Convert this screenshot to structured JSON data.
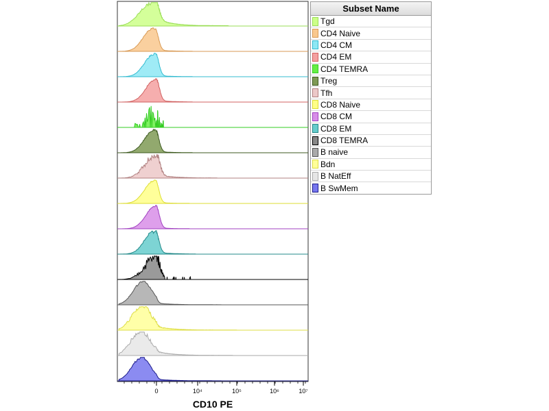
{
  "chart_data": {
    "type": "histogram-overlay",
    "xlabel": "CD10 PE",
    "x_ticks": [
      {
        "value": 0,
        "label": "0"
      },
      {
        "value": 4,
        "label": "10⁴"
      },
      {
        "value": 5,
        "label": "10⁵"
      },
      {
        "value": 6,
        "label": "10⁶"
      },
      {
        "value": 7,
        "label": "10⁷"
      }
    ],
    "x_scale": "biexponential",
    "legend": {
      "title": "Subset Name",
      "placement": "right"
    },
    "series": [
      {
        "name": "Tgd",
        "color": "#ccff88",
        "stroke": "#99dd55",
        "peak": -0.2,
        "width": 0.55,
        "tail": 0.35,
        "tail_end": 4.8,
        "noise": 0.15
      },
      {
        "name": "CD4 Naive",
        "color": "#f9c88e",
        "stroke": "#d89a55",
        "peak": -0.15,
        "width": 0.45,
        "tail": 0.06,
        "tail_end": 3.5,
        "noise": 0.08
      },
      {
        "name": "CD4 CM",
        "color": "#8ee8f4",
        "stroke": "#33bbd0",
        "peak": -0.1,
        "width": 0.45,
        "tail": 0.05,
        "tail_end": 3.5,
        "noise": 0.08
      },
      {
        "name": "CD4 EM",
        "color": "#f4a0a0",
        "stroke": "#d06060",
        "peak": -0.05,
        "width": 0.45,
        "tail": 0.07,
        "tail_end": 3.5,
        "noise": 0.1
      },
      {
        "name": "CD4 TEMRA",
        "color": "#66ee44",
        "stroke": "#33cc22",
        "peak": -0.1,
        "width": 0.5,
        "tail": 0.0,
        "tail_end": 2.5,
        "noise": 1.0,
        "sparse": true
      },
      {
        "name": "Treg",
        "color": "#7f9a55",
        "stroke": "#3d5a1f",
        "peak": -0.1,
        "width": 0.45,
        "tail": 0.05,
        "tail_end": 3.5,
        "noise": 0.1
      },
      {
        "name": "Tfh",
        "color": "#ecc8c8",
        "stroke": "#b08080",
        "peak": -0.05,
        "width": 0.5,
        "tail": 0.15,
        "tail_end": 4.5,
        "noise": 0.35
      },
      {
        "name": "CD8 Naive",
        "color": "#ffff88",
        "stroke": "#dddd33",
        "peak": -0.1,
        "width": 0.45,
        "tail": 0.04,
        "tail_end": 3.2,
        "noise": 0.06
      },
      {
        "name": "CD8 CM",
        "color": "#d88ee8",
        "stroke": "#a040c0",
        "peak": -0.05,
        "width": 0.45,
        "tail": 0.04,
        "tail_end": 3.2,
        "noise": 0.06
      },
      {
        "name": "CD8 EM",
        "color": "#66cccc",
        "stroke": "#228888",
        "peak": -0.1,
        "width": 0.45,
        "tail": 0.08,
        "tail_end": 3.8,
        "noise": 0.15
      },
      {
        "name": "CD8 TEMRA",
        "color": "#888888",
        "stroke": "#000000",
        "peak": -0.05,
        "width": 0.5,
        "tail": 0.12,
        "tail_end": 3.9,
        "noise": 0.6,
        "sparse_tail": true
      },
      {
        "name": "B naive",
        "color": "#aaaaaa",
        "stroke": "#555555",
        "peak": -0.5,
        "width": 0.45,
        "tail": 0.1,
        "tail_end": 4.6,
        "noise": 0.1
      },
      {
        "name": "Bdn",
        "color": "#ffff99",
        "stroke": "#dddd44",
        "peak": -0.55,
        "width": 0.45,
        "tail": 0.22,
        "tail_end": 5.0,
        "noise": 0.25
      },
      {
        "name": "B NatEff",
        "color": "#e6e6e6",
        "stroke": "#aaaaaa",
        "peak": -0.6,
        "width": 0.45,
        "tail": 0.25,
        "tail_end": 4.9,
        "noise": 0.25
      },
      {
        "name": "B SwMem",
        "color": "#7777ee",
        "stroke": "#1a1a8a",
        "peak": -0.55,
        "width": 0.45,
        "tail": 0.1,
        "tail_end": 4.6,
        "noise": 0.1
      }
    ]
  }
}
